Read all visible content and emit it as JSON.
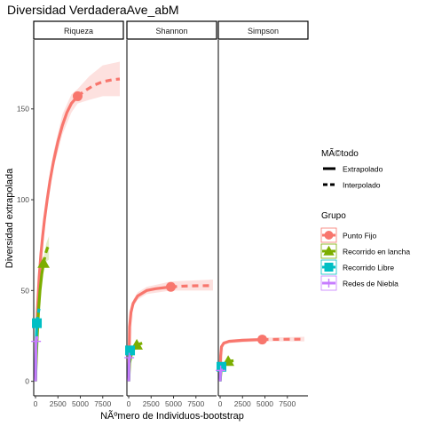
{
  "chart_data": {
    "type": "line",
    "title": "Diversidad VerdaderaAve_abM",
    "xlabel": "NÃºmero de Individuos-bootstrap",
    "ylabel": "Diversidad extrapolada",
    "xticks": [
      0,
      2500,
      5000,
      7500
    ],
    "yticks": [
      0,
      50,
      100,
      150
    ],
    "xlim": [
      -200,
      9800
    ],
    "ylim": [
      -8,
      188
    ],
    "facets": [
      "Riqueza",
      "Shannon",
      "Simpson"
    ],
    "legend": {
      "position": "right",
      "method_title": "MÃ©todo",
      "methods": [
        "Extrapolado",
        "Interpolado"
      ],
      "group_title": "Grupo",
      "groups": [
        {
          "name": "Punto Fijo",
          "color": "#F8766D",
          "shape": "circle"
        },
        {
          "name": "Recorrido en lancha",
          "color": "#7CAE00",
          "shape": "triangle"
        },
        {
          "name": "Recorrido Libre",
          "color": "#00BFC4",
          "shape": "square"
        },
        {
          "name": "Redes de Niebla",
          "color": "#C77CFF",
          "shape": "plus"
        }
      ]
    },
    "panels": [
      {
        "facet": "Riqueza",
        "series": [
          {
            "group": "Punto Fijo",
            "observed": [
              4700,
              157
            ],
            "interpolated": [
              [
                0,
                0
              ],
              [
                100,
                22
              ],
              [
                200,
                38
              ],
              [
                400,
                57
              ],
              [
                600,
                70
              ],
              [
                800,
                80
              ],
              [
                1000,
                89
              ],
              [
                1300,
                100
              ],
              [
                1600,
                110
              ],
              [
                2000,
                121
              ],
              [
                2500,
                132
              ],
              [
                3000,
                141
              ],
              [
                3500,
                148
              ],
              [
                4000,
                153
              ],
              [
                4700,
                157
              ]
            ],
            "extrapolated": [
              [
                4700,
                157
              ],
              [
                5500,
                160
              ],
              [
                6500,
                163
              ],
              [
                7500,
                165
              ],
              [
                8500,
                166
              ],
              [
                9400,
                166.5
              ]
            ],
            "ci_upper": [
              [
                0,
                2
              ],
              [
                1000,
                92
              ],
              [
                2000,
                126
              ],
              [
                3000,
                147
              ],
              [
                4000,
                158
              ],
              [
                4700,
                161
              ],
              [
                6000,
                168
              ],
              [
                7500,
                174
              ],
              [
                9400,
                176
              ]
            ],
            "ci_lower": [
              [
                0,
                0
              ],
              [
                1000,
                86
              ],
              [
                2000,
                117
              ],
              [
                3000,
                136
              ],
              [
                4000,
                148
              ],
              [
                4700,
                153
              ],
              [
                6000,
                155
              ],
              [
                7500,
                157
              ],
              [
                9400,
                157
              ]
            ]
          },
          {
            "group": "Recorrido en lancha",
            "observed": [
              900,
              65
            ],
            "interpolated": [
              [
                0,
                0
              ],
              [
                100,
                14
              ],
              [
                200,
                26
              ],
              [
                350,
                40
              ],
              [
                500,
                50
              ],
              [
                700,
                59
              ],
              [
                900,
                65
              ]
            ],
            "extrapolated": [
              [
                900,
                65
              ],
              [
                1100,
                70
              ],
              [
                1300,
                73
              ],
              [
                1500,
                75
              ]
            ],
            "ci_upper": [
              [
                0,
                2
              ],
              [
                500,
                53
              ],
              [
                900,
                68
              ],
              [
                1200,
                76
              ],
              [
                1500,
                80
              ]
            ],
            "ci_lower": [
              [
                0,
                0
              ],
              [
                500,
                47
              ],
              [
                900,
                62
              ],
              [
                1200,
                66
              ],
              [
                1500,
                67
              ]
            ]
          },
          {
            "group": "Recorrido Libre",
            "observed": [
              150,
              32
            ],
            "interpolated": [
              [
                0,
                0
              ],
              [
                30,
                10
              ],
              [
                60,
                18
              ],
              [
                100,
                26
              ],
              [
                150,
                32
              ]
            ],
            "extrapolated": [
              [
                150,
                32
              ],
              [
                250,
                36
              ],
              [
                400,
                40
              ]
            ],
            "ci_upper": [],
            "ci_lower": []
          },
          {
            "group": "Redes de Niebla",
            "observed": [
              60,
              22
            ],
            "interpolated": [
              [
                0,
                0
              ],
              [
                15,
                8
              ],
              [
                35,
                15
              ],
              [
                60,
                22
              ]
            ],
            "extrapolated": [
              [
                60,
                22
              ],
              [
                150,
                24
              ],
              [
                300,
                24
              ]
            ],
            "ci_upper": [],
            "ci_lower": []
          }
        ]
      },
      {
        "facet": "Shannon",
        "series": [
          {
            "group": "Punto Fijo",
            "observed": [
              4700,
              52
            ],
            "interpolated": [
              [
                0,
                0
              ],
              [
                100,
                30
              ],
              [
                250,
                38
              ],
              [
                500,
                43
              ],
              [
                1000,
                47
              ],
              [
                2000,
                50
              ],
              [
                3000,
                51
              ],
              [
                4700,
                52
              ]
            ],
            "extrapolated": [
              [
                4700,
                52
              ],
              [
                6000,
                52.4
              ],
              [
                7500,
                52.6
              ],
              [
                9400,
                52.7
              ]
            ],
            "ci_upper": [
              [
                0,
                1
              ],
              [
                500,
                45
              ],
              [
                1000,
                49
              ],
              [
                2000,
                52
              ],
              [
                4700,
                55
              ],
              [
                9400,
                56
              ]
            ],
            "ci_lower": [
              [
                0,
                0
              ],
              [
                500,
                41
              ],
              [
                1000,
                45
              ],
              [
                2000,
                48
              ],
              [
                4700,
                50
              ],
              [
                9400,
                50
              ]
            ]
          },
          {
            "group": "Recorrido en lancha",
            "observed": [
              900,
              20
            ],
            "interpolated": [
              [
                0,
                0
              ],
              [
                100,
                10
              ],
              [
                300,
                15
              ],
              [
                600,
                18
              ],
              [
                900,
                20
              ]
            ],
            "extrapolated": [
              [
                900,
                20
              ],
              [
                1200,
                20.5
              ],
              [
                1500,
                21
              ]
            ],
            "ci_upper": [],
            "ci_lower": []
          },
          {
            "group": "Recorrido Libre",
            "observed": [
              150,
              17
            ],
            "interpolated": [
              [
                0,
                0
              ],
              [
                30,
                8
              ],
              [
                80,
                13
              ],
              [
                150,
                17
              ]
            ],
            "extrapolated": [
              [
                150,
                17
              ],
              [
                300,
                17.5
              ],
              [
                400,
                18
              ]
            ],
            "ci_upper": [],
            "ci_lower": []
          },
          {
            "group": "Redes de Niebla",
            "observed": [
              60,
              13
            ],
            "interpolated": [
              [
                0,
                0
              ],
              [
                20,
                6
              ],
              [
                40,
                10
              ],
              [
                60,
                13
              ]
            ],
            "extrapolated": [
              [
                60,
                13
              ],
              [
                200,
                13.5
              ],
              [
                300,
                13.5
              ]
            ],
            "ci_upper": [],
            "ci_lower": []
          }
        ]
      },
      {
        "facet": "Simpson",
        "series": [
          {
            "group": "Punto Fijo",
            "observed": [
              4700,
              23
            ],
            "interpolated": [
              [
                0,
                0
              ],
              [
                60,
                14
              ],
              [
                150,
                19
              ],
              [
                400,
                21
              ],
              [
                1000,
                22
              ],
              [
                2500,
                22.6
              ],
              [
                4700,
                23
              ]
            ],
            "extrapolated": [
              [
                4700,
                23
              ],
              [
                6500,
                23.1
              ],
              [
                9400,
                23.2
              ]
            ],
            "ci_upper": [
              [
                0,
                0.5
              ],
              [
                400,
                22
              ],
              [
                1000,
                23
              ],
              [
                4700,
                24
              ],
              [
                9400,
                24.5
              ]
            ],
            "ci_lower": [
              [
                0,
                0
              ],
              [
                400,
                20
              ],
              [
                1000,
                21
              ],
              [
                4700,
                22
              ],
              [
                9400,
                22
              ]
            ]
          },
          {
            "group": "Recorrido en lancha",
            "observed": [
              900,
              11
            ],
            "interpolated": [
              [
                0,
                0
              ],
              [
                100,
                6
              ],
              [
                300,
                9
              ],
              [
                600,
                10
              ],
              [
                900,
                11
              ]
            ],
            "extrapolated": [
              [
                900,
                11
              ],
              [
                1200,
                11.2
              ],
              [
                1500,
                11.3
              ]
            ],
            "ci_upper": [],
            "ci_lower": []
          },
          {
            "group": "Recorrido Libre",
            "observed": [
              150,
              8
            ],
            "interpolated": [
              [
                0,
                0
              ],
              [
                30,
                4
              ],
              [
                80,
                6
              ],
              [
                150,
                8
              ]
            ],
            "extrapolated": [
              [
                150,
                8
              ],
              [
                300,
                8.3
              ],
              [
                400,
                8.5
              ]
            ],
            "ci_upper": [],
            "ci_lower": []
          },
          {
            "group": "Redes de Niebla",
            "observed": [
              60,
              6
            ],
            "interpolated": [
              [
                0,
                0
              ],
              [
                20,
                3
              ],
              [
                40,
                5
              ],
              [
                60,
                6
              ]
            ],
            "extrapolated": [
              [
                60,
                6
              ],
              [
                200,
                6.2
              ],
              [
                300,
                6.2
              ]
            ],
            "ci_upper": [],
            "ci_lower": []
          }
        ]
      }
    ]
  }
}
